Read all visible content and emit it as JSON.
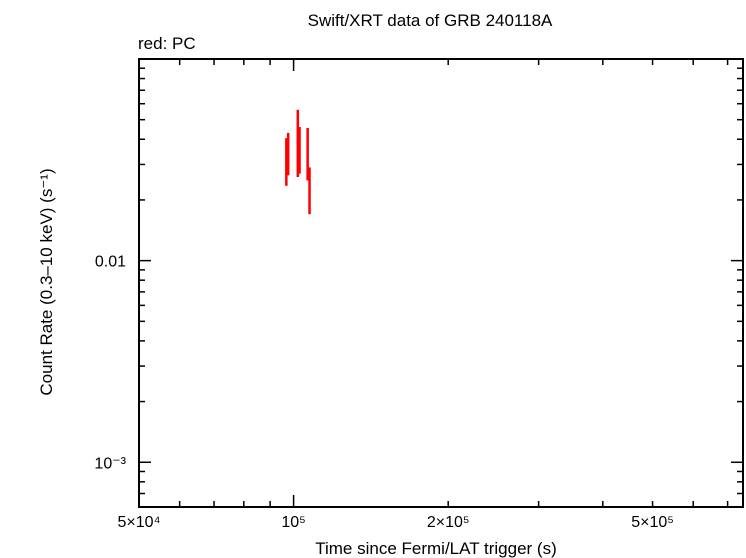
{
  "chart_data": {
    "type": "scatter",
    "title": "Swift/XRT data of GRB 240118A",
    "subtitle": "red: PC",
    "xlabel": "Time since Fermi/LAT trigger (s)",
    "ylabel": "Count Rate (0.3–10 keV) (s⁻¹)",
    "xscale": "log",
    "yscale": "log",
    "xlim": [
      50000,
      750000
    ],
    "ylim": [
      0.0006,
      0.1
    ],
    "x_ticks": [
      {
        "value": 50000,
        "label": "5×10⁴"
      },
      {
        "value": 100000,
        "label": "10⁵"
      },
      {
        "value": 200000,
        "label": "2×10⁵"
      },
      {
        "value": 500000,
        "label": "5×10⁵"
      }
    ],
    "y_ticks": [
      {
        "value": 0.01,
        "label": "0.01"
      },
      {
        "value": 0.001,
        "label": "10⁻³"
      }
    ],
    "series": [
      {
        "name": "PC",
        "color": "#ff0000",
        "points": [
          {
            "x": 96800,
            "xerr": [
              200,
              200
            ],
            "y": 0.031,
            "yerr": [
              0.0075,
              0.0095
            ]
          },
          {
            "x": 97600,
            "xerr": [
              200,
              200
            ],
            "y": 0.034,
            "yerr": [
              0.0075,
              0.009
            ]
          },
          {
            "x": 101900,
            "xerr": [
              250,
              250
            ],
            "y": 0.036,
            "yerr": [
              0.01,
              0.02
            ]
          },
          {
            "x": 102700,
            "xerr": [
              250,
              250
            ],
            "y": 0.035,
            "yerr": [
              0.008,
              0.011
            ]
          },
          {
            "x": 106500,
            "xerr": [
              250,
              250
            ],
            "y": 0.032,
            "yerr": [
              0.007,
              0.0135
            ]
          },
          {
            "x": 107400,
            "xerr": [
              250,
              250
            ],
            "y": 0.022,
            "yerr": [
              0.005,
              0.007
            ]
          }
        ]
      }
    ]
  }
}
